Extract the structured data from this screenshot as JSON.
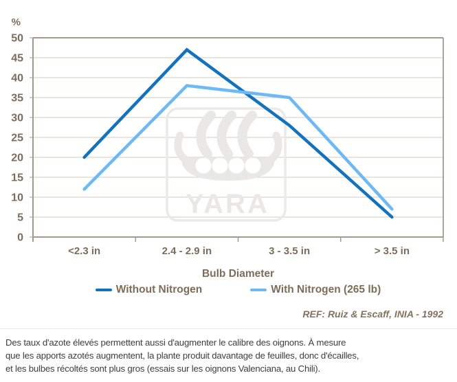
{
  "chart": {
    "y_axis_unit": "%",
    "x_axis_label": "Bulb Diameter",
    "reference": "REF: Ruiz & Escaff, INIA - 1992",
    "watermark": "YARA"
  },
  "chart_data": {
    "type": "line",
    "categories": [
      "<2.3 in",
      "2.4 - 2.9 in",
      "3 - 3.5 in",
      "> 3.5 in"
    ],
    "series": [
      {
        "name": "Without Nitrogen",
        "color": "#1372bd",
        "values": [
          20,
          47,
          28,
          5
        ]
      },
      {
        "name": "With Nitrogen (265 lb)",
        "color": "#6db9f5",
        "values": [
          12,
          38,
          35,
          7
        ]
      }
    ],
    "title": "",
    "xlabel": "Bulb Diameter",
    "ylabel": "%",
    "ylim": [
      0,
      50
    ],
    "y_ticks": [
      0,
      5,
      10,
      15,
      20,
      25,
      30,
      35,
      40,
      45,
      50
    ],
    "grid": true,
    "legend_position": "bottom"
  },
  "caption": {
    "lines": [
      "Des taux d'azote élevés permettent aussi d'augmenter le calibre des oignons. À mesure",
      "que les apports azotés augmentent, la plante produit davantage de feuilles, donc d'écailles,",
      "et les bulbes récoltés sont plus gros (essais sur les oignons Valenciana, au Chili)."
    ]
  },
  "colors": {
    "axis_frame": "#a49a8c",
    "gridline": "#dcd4c8",
    "chart_text": "#7d6c58",
    "caption_text": "#3d3d3d",
    "watermark_gray": "#e9e8e6"
  }
}
